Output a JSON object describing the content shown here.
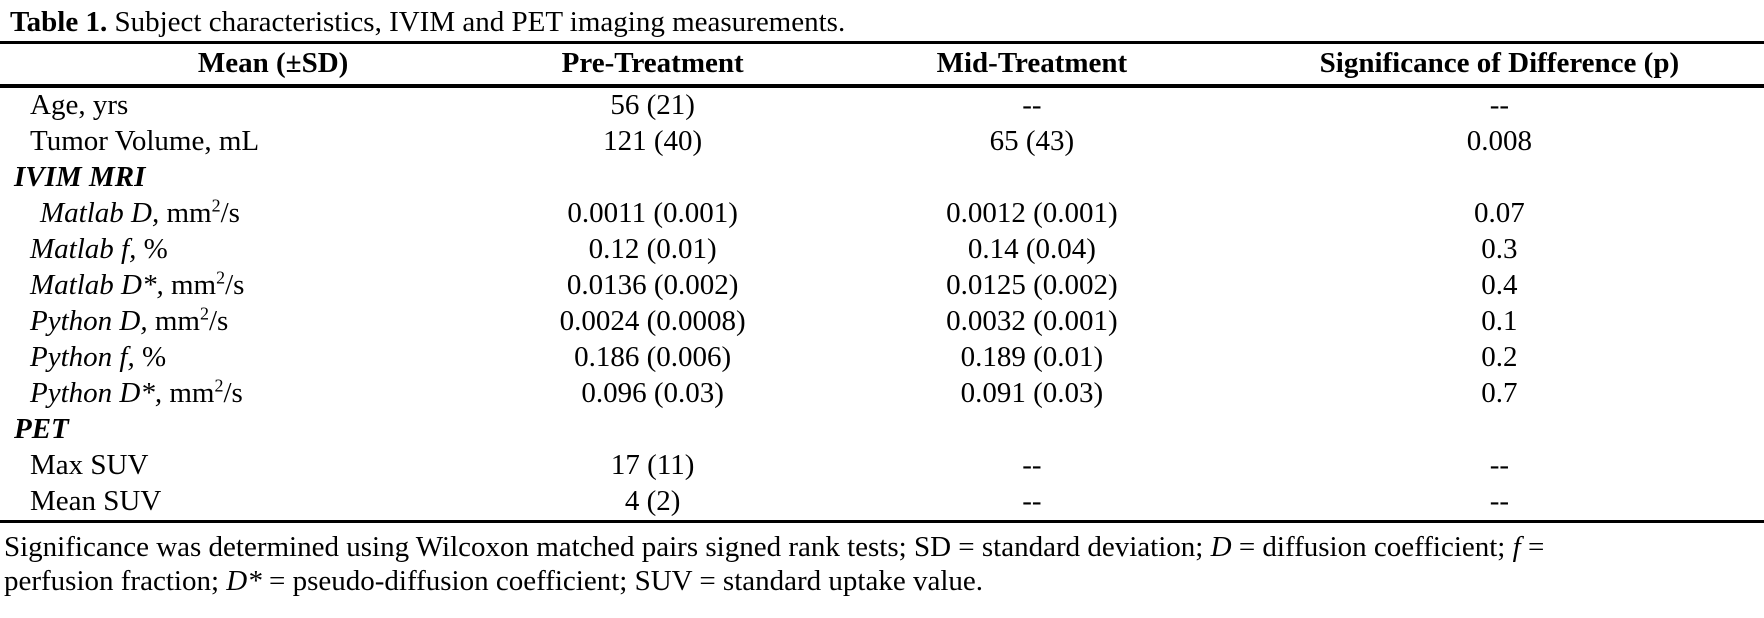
{
  "caption": {
    "label": "Table 1.",
    "text": " Subject characteristics, IVIM and PET imaging measurements."
  },
  "table": {
    "headers": [
      "Mean (±SD)",
      "Pre-Treatment",
      "Mid-Treatment",
      "Significance of Difference (p)"
    ],
    "rows": [
      {
        "type": "data",
        "indent": 0,
        "label": [
          {
            "t": "Age, yrs",
            "s": ""
          }
        ],
        "values": [
          "56 (21)",
          "--",
          "--"
        ]
      },
      {
        "type": "data",
        "indent": 0,
        "label": [
          {
            "t": "Tumor Volume, mL",
            "s": ""
          }
        ],
        "values": [
          "121 (40)",
          "65 (43)",
          "0.008"
        ]
      },
      {
        "type": "section",
        "indent": 0,
        "label": [
          {
            "t": "IVIM MRI",
            "s": "bi"
          }
        ],
        "values": [
          "",
          "",
          ""
        ]
      },
      {
        "type": "data",
        "indent": 1,
        "label": [
          {
            "t": "Matlab D,",
            "s": "i"
          },
          {
            "t": " mm",
            "s": ""
          },
          {
            "t": "2",
            "s": "sup"
          },
          {
            "t": "/s",
            "s": ""
          }
        ],
        "values": [
          "0.0011 (0.001)",
          "0.0012 (0.001)",
          "0.07"
        ]
      },
      {
        "type": "data",
        "indent": 0,
        "label": [
          {
            "t": "Matlab f,",
            "s": "i"
          },
          {
            "t": " %",
            "s": ""
          }
        ],
        "values": [
          "0.12 (0.01)",
          "0.14 (0.04)",
          "0.3"
        ]
      },
      {
        "type": "data",
        "indent": 0,
        "label": [
          {
            "t": "Matlab D*,",
            "s": "i"
          },
          {
            "t": " mm",
            "s": ""
          },
          {
            "t": "2",
            "s": "sup"
          },
          {
            "t": "/s",
            "s": ""
          }
        ],
        "values": [
          "0.0136 (0.002)",
          "0.0125 (0.002)",
          "0.4"
        ]
      },
      {
        "type": "data",
        "indent": 0,
        "label": [
          {
            "t": "Python D,",
            "s": "i"
          },
          {
            "t": " mm",
            "s": ""
          },
          {
            "t": "2",
            "s": "sup"
          },
          {
            "t": "/s",
            "s": ""
          }
        ],
        "values": [
          "0.0024 (0.0008)",
          "0.0032 (0.001)",
          "0.1"
        ]
      },
      {
        "type": "data",
        "indent": 0,
        "label": [
          {
            "t": "Python f,",
            "s": "i"
          },
          {
            "t": " %",
            "s": ""
          }
        ],
        "values": [
          "0.186 (0.006)",
          "0.189 (0.01)",
          "0.2"
        ]
      },
      {
        "type": "data",
        "indent": 0,
        "label": [
          {
            "t": "Python D*,",
            "s": "i"
          },
          {
            "t": " mm",
            "s": ""
          },
          {
            "t": "2",
            "s": "sup"
          },
          {
            "t": "/s",
            "s": ""
          }
        ],
        "values": [
          "0.096 (0.03)",
          "0.091 (0.03)",
          "0.7"
        ]
      },
      {
        "type": "section",
        "indent": 0,
        "label": [
          {
            "t": "PET",
            "s": "bi"
          }
        ],
        "values": [
          "",
          "",
          ""
        ]
      },
      {
        "type": "data",
        "indent": 0,
        "label": [
          {
            "t": "Max SUV",
            "s": ""
          }
        ],
        "values": [
          "17 (11)",
          "--",
          "--"
        ]
      },
      {
        "type": "data",
        "indent": 0,
        "label": [
          {
            "t": "Mean SUV",
            "s": ""
          }
        ],
        "values": [
          "4 (2)",
          "--",
          "--"
        ]
      }
    ]
  },
  "footnote": {
    "lines": [
      [
        {
          "t": "Significance was determined using Wilcoxon matched pairs signed rank tests; SD = standard deviation; ",
          "s": ""
        },
        {
          "t": "D",
          "s": "i"
        },
        {
          "t": " = diffusion coefficient; ",
          "s": ""
        },
        {
          "t": "f",
          "s": "i"
        },
        {
          "t": " =",
          "s": ""
        }
      ],
      [
        {
          "t": "perfusion fraction; ",
          "s": ""
        },
        {
          "t": "D*",
          "s": "i"
        },
        {
          "t": " = pseudo-diffusion coefficient; SUV = standard uptake value.",
          "s": ""
        }
      ]
    ]
  },
  "colors": {
    "background": "#ffffff",
    "text": "#000000",
    "rule": "#000000"
  }
}
